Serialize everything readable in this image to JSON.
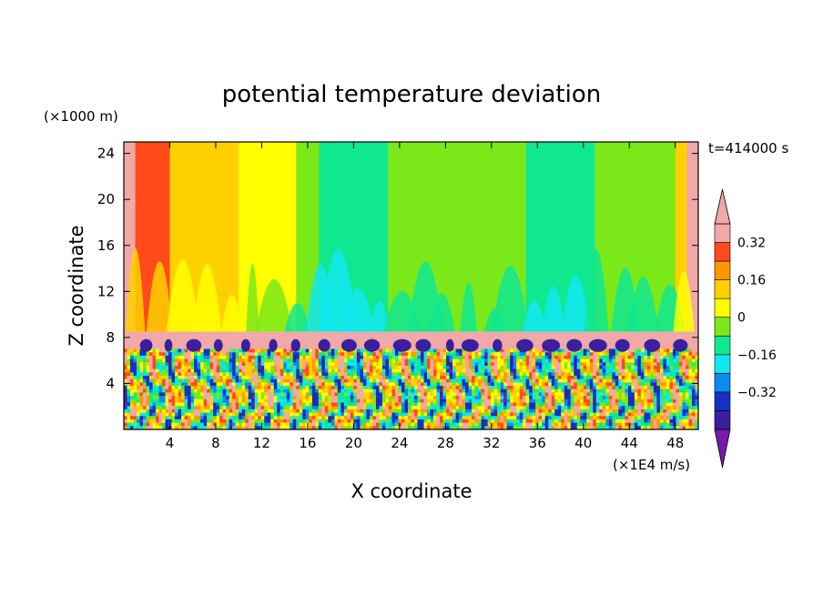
{
  "chart_data": {
    "type": "heatmap",
    "title": "potential temperature deviation",
    "xlabel": "X coordinate",
    "ylabel": "Z coordinate",
    "x_unit": "(×1E4 m/s)",
    "y_unit": "(×1000 m)",
    "time_label": "t=414000 s",
    "xlim": [
      0,
      50
    ],
    "ylim": [
      0,
      25
    ],
    "x_ticks": [
      4,
      8,
      12,
      16,
      20,
      24,
      28,
      32,
      36,
      40,
      44,
      48
    ],
    "y_ticks": [
      4,
      8,
      12,
      16,
      20,
      24
    ],
    "colorbar": {
      "levels": [
        -0.48,
        -0.4,
        -0.32,
        -0.24,
        -0.16,
        -0.08,
        0,
        0.08,
        0.16,
        0.24,
        0.32,
        0.4
      ],
      "colors": [
        "#7a1aa8",
        "#3a1f9e",
        "#1432c8",
        "#0b8cf0",
        "#10e8f0",
        "#10e890",
        "#7be81a",
        "#ffff00",
        "#ffd000",
        "#ff9800",
        "#ff4a1a",
        "#f0a8a8",
        "#f0a8a8"
      ],
      "labels": [
        "0.32",
        "0.16",
        "0",
        "−0.16",
        "−0.32"
      ],
      "label_values": [
        0.32,
        0.16,
        0,
        -0.16,
        -0.32
      ]
    },
    "upper_layer_columns": [
      {
        "x0": 0,
        "x1": 1,
        "value": 0.36
      },
      {
        "x0": 1,
        "x1": 4,
        "value": 0.24
      },
      {
        "x0": 4,
        "x1": 10,
        "value": 0.12
      },
      {
        "x0": 10,
        "x1": 15,
        "value": 0.04
      },
      {
        "x0": 15,
        "x1": 17,
        "value": -0.04
      },
      {
        "x0": 17,
        "x1": 23,
        "value": -0.12
      },
      {
        "x0": 23,
        "x1": 29,
        "value": -0.04
      },
      {
        "x0": 29,
        "x1": 35,
        "value": -0.04
      },
      {
        "x0": 35,
        "x1": 41,
        "value": -0.12
      },
      {
        "x0": 41,
        "x1": 48,
        "value": -0.04
      },
      {
        "x0": 48,
        "x1": 49,
        "value": 0.12
      },
      {
        "x0": 49,
        "x1": 50,
        "value": 0.36
      }
    ],
    "tropopause_band": {
      "z0": 7.0,
      "z1": 8.5,
      "value": 0.44
    }
  }
}
